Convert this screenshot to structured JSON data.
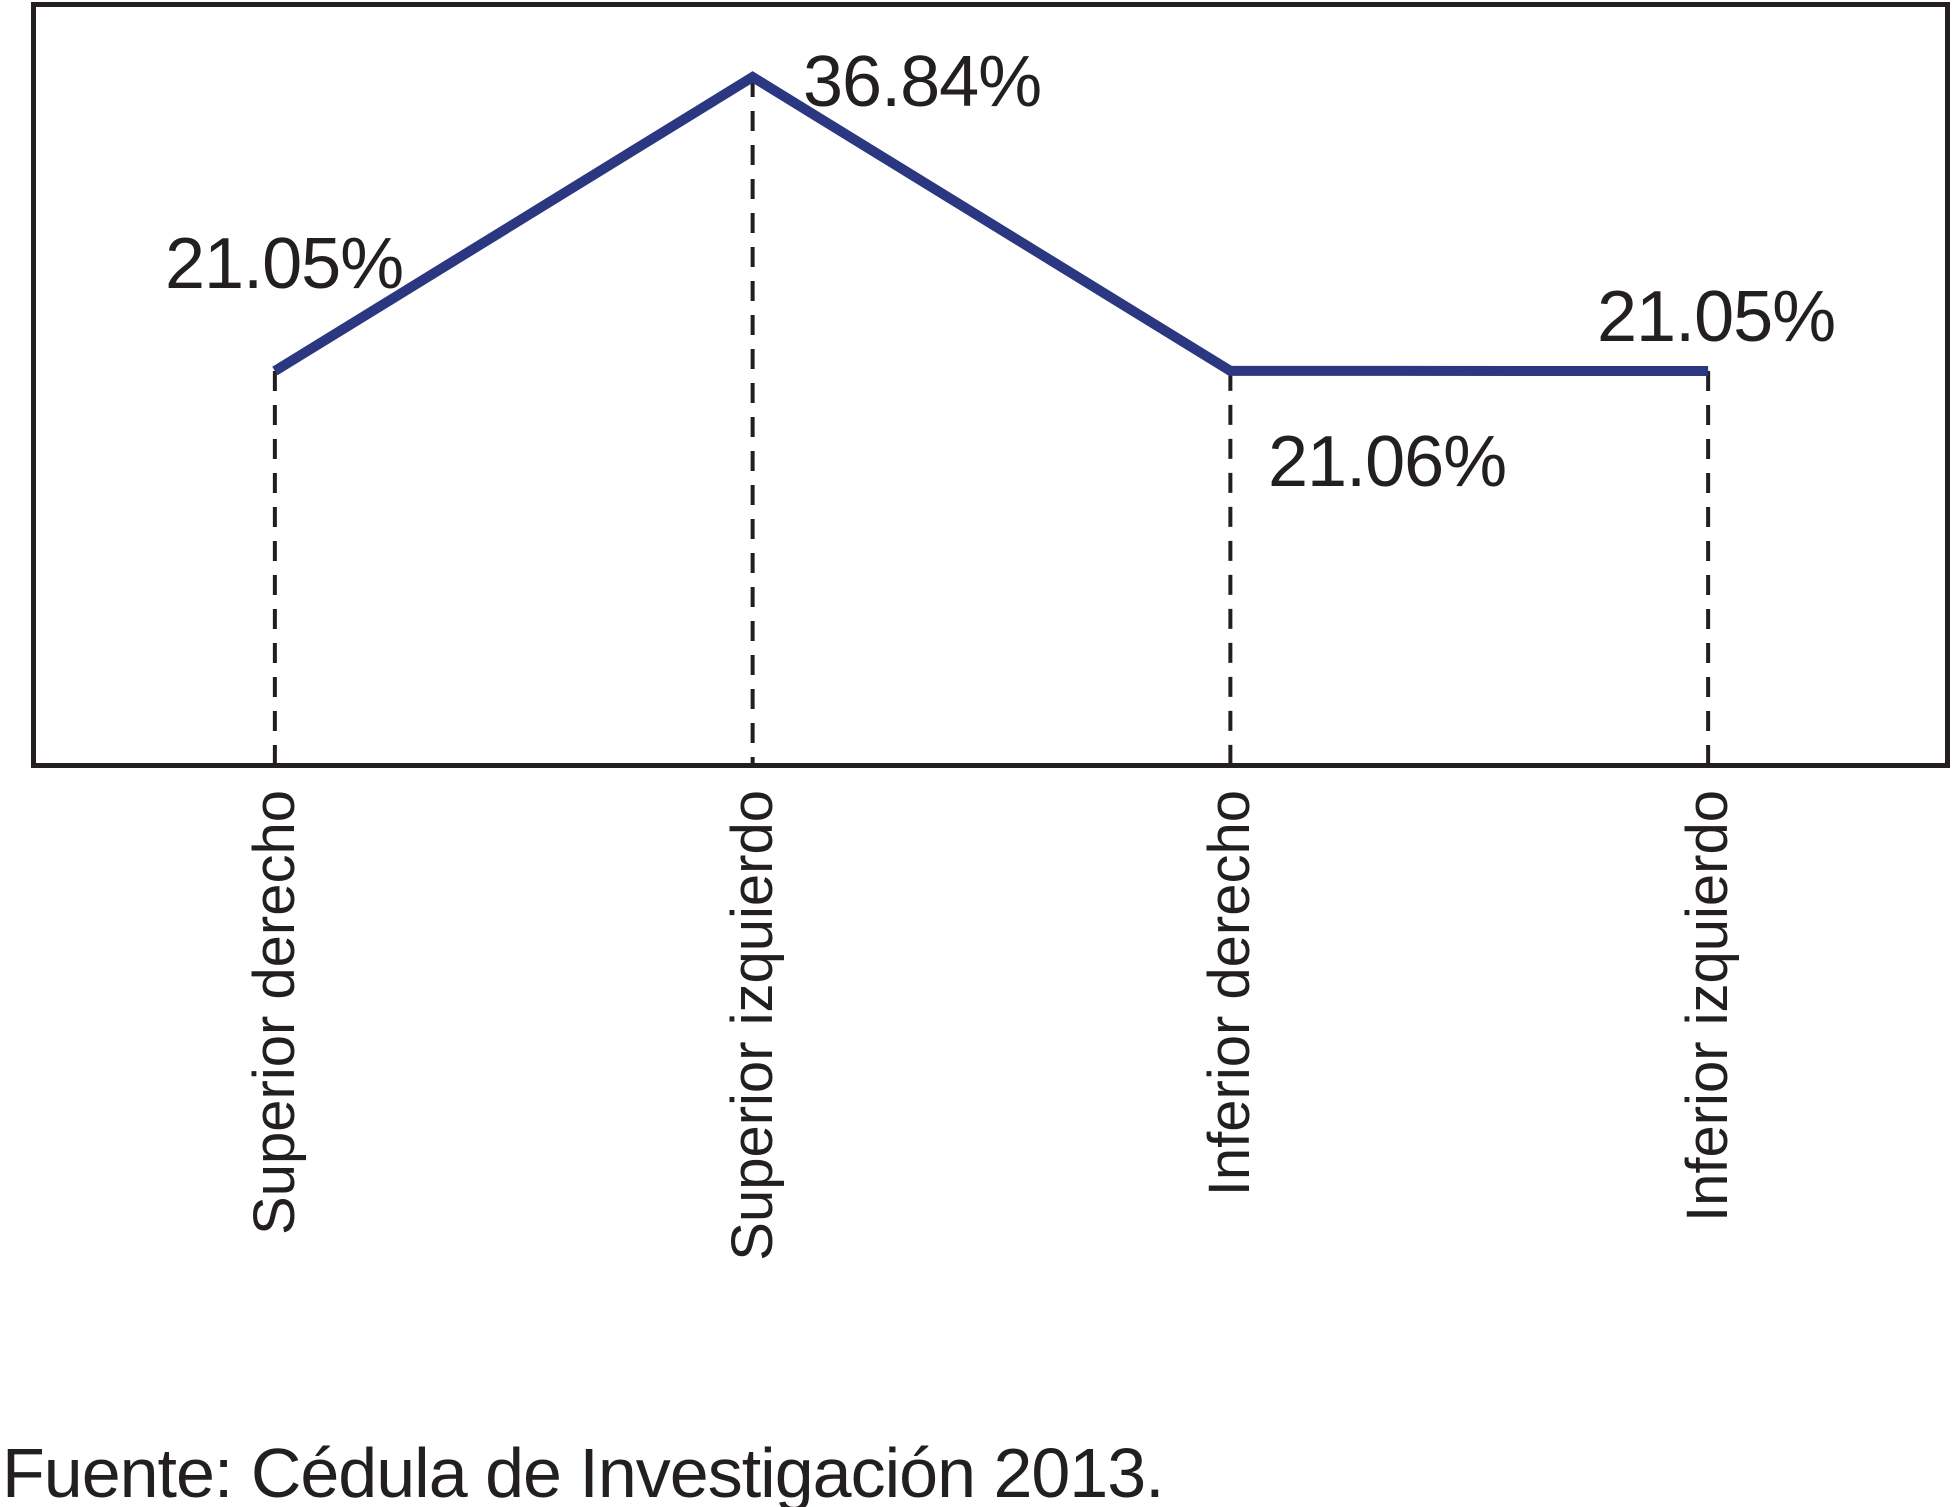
{
  "chart_data": {
    "type": "line",
    "categories": [
      "Superior derecho",
      "Superior izquierdo",
      "Inferior derecho",
      "Inferior izquierdo"
    ],
    "values": [
      21.05,
      36.84,
      21.06,
      21.05
    ],
    "point_labels": [
      "21.05%",
      "36.84%",
      "21.06%",
      "21.05%"
    ],
    "title": "",
    "xlabel": "",
    "ylabel": "",
    "ylim": [
      0,
      40.6
    ],
    "grid": false,
    "legend": false,
    "line_color": "#2b3780",
    "guide_line_color": "#231f20",
    "guide_line_style": "dashed-vertical"
  },
  "footer": {
    "source_note": "Fuente: Cédula de Investigación 2013."
  }
}
